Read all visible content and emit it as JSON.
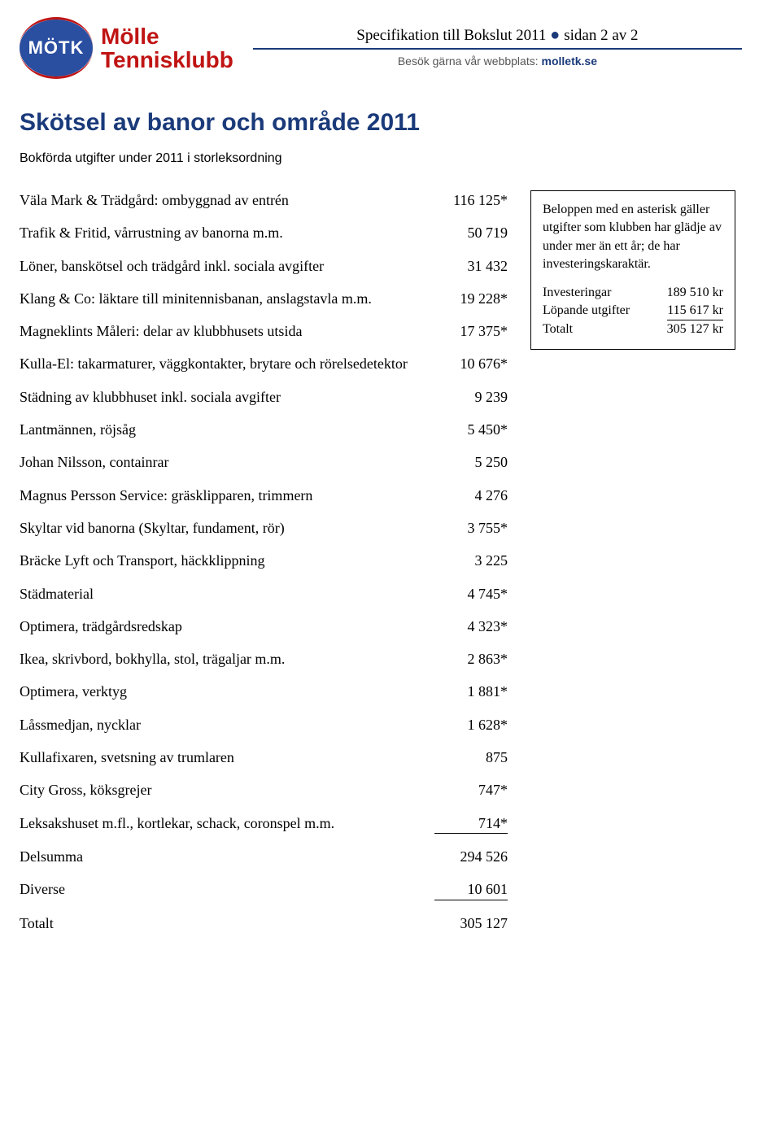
{
  "logo": {
    "oval_text": "MÖTK",
    "line1": "Mölle",
    "line2": "Tennisklubb"
  },
  "header": {
    "spec_prefix": "Specifikation till Bokslut 2011",
    "spec_suffix": "sidan 2 av 2",
    "website_prefix": "Besök gärna vår webbplats:",
    "website_link": "molletk.se"
  },
  "title": "Skötsel av banor och område 2011",
  "subtitle": "Bokförda utgifter under 2011 i storleksordning",
  "rows": [
    {
      "label": "Väla Mark & Trädgård: ombyggnad av entrén",
      "value": "116 125*"
    },
    {
      "label": "Trafik & Fritid, vårrustning av banorna m.m.",
      "value": "50 719"
    },
    {
      "label": "Löner, banskötsel och trädgård inkl. sociala avgifter",
      "value": "31 432"
    },
    {
      "label": "Klang & Co: läktare till minitennisbanan, anslagstavla m.m.",
      "value": "19 228*"
    },
    {
      "label": "Magneklints Måleri: delar av klubbhusets utsida",
      "value": "17 375*"
    },
    {
      "label": "Kulla-El: takarmaturer, väggkontakter, brytare och rörelsedetektor",
      "value": "10 676*"
    },
    {
      "label": "Städning av klubbhuset inkl. sociala avgifter",
      "value": "9 239"
    },
    {
      "label": "Lantmännen, röjsåg",
      "value": "5 450*"
    },
    {
      "label": "Johan Nilsson, containrar",
      "value": "5 250"
    },
    {
      "label": "Magnus Persson Service: gräsklipparen, trimmern",
      "value": "4 276"
    },
    {
      "label": "Skyltar vid banorna (Skyltar, fundament, rör)",
      "value": "3 755*"
    },
    {
      "label": "Bräcke Lyft och Transport, häckklippning",
      "value": "3 225"
    },
    {
      "label": "Städmaterial",
      "value": "4 745*"
    },
    {
      "label": "Optimera, trädgårdsredskap",
      "value": "4 323*"
    },
    {
      "label": "Ikea, skrivbord, bokhylla, stol, trägaljar m.m.",
      "value": "2 863*"
    },
    {
      "label": "Optimera, verktyg",
      "value": "1 881*"
    },
    {
      "label": "Låssmedjan, nycklar",
      "value": "1 628*"
    },
    {
      "label": "Kullafixaren, svetsning av trumlaren",
      "value": "875"
    },
    {
      "label": "City Gross, köksgrejer",
      "value": "747*"
    },
    {
      "label": "Leksakshuset m.fl., kortlekar, schack, coronspel m.m.",
      "value": "714*",
      "underline": true
    },
    {
      "label": "Delsumma",
      "value": "294 526"
    },
    {
      "label": "Diverse",
      "value": "10 601",
      "underline": true
    },
    {
      "label": "Totalt",
      "value": "305 127"
    }
  ],
  "infobox": {
    "paragraph": "Beloppen med en asterisk gäller utgifter som klubben har glädje av under mer än ett år; de har investeringskaraktär.",
    "lines": [
      {
        "label": "Investeringar",
        "value": "189 510 kr"
      },
      {
        "label": "Löpande utgifter",
        "value": "115 617 kr",
        "underline": true
      },
      {
        "label": "Totalt",
        "value": "305 127  kr"
      }
    ]
  }
}
